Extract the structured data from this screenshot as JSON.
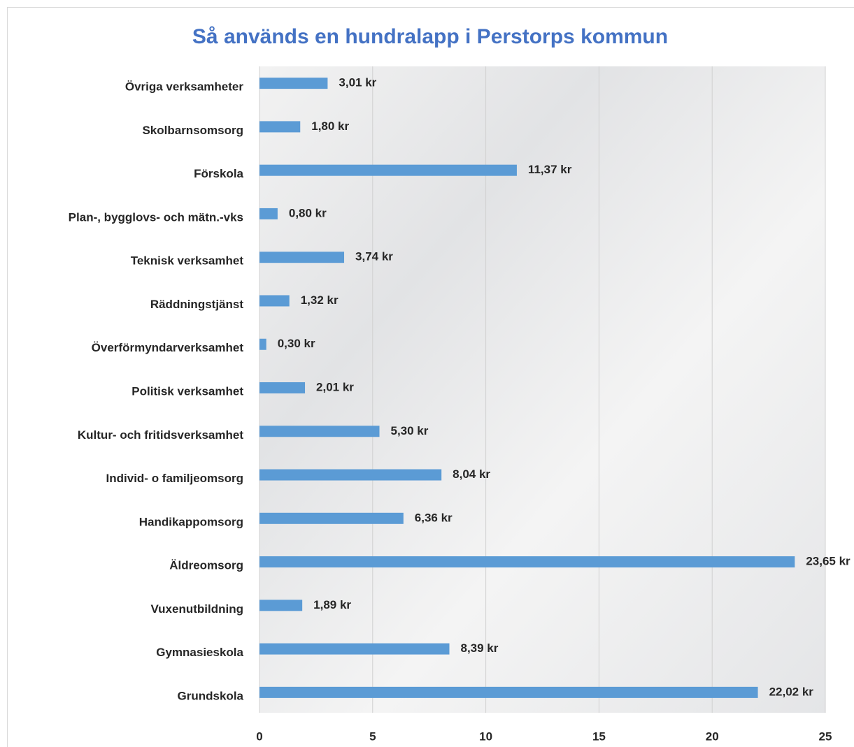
{
  "chart_data": {
    "type": "barh",
    "title": "Så används en hundralapp i Perstorps kommun",
    "categories": [
      "Övriga verksamheter",
      "Skolbarnsomsorg",
      "Förskola",
      "Plan-, bygglovs- och mätn.-vks",
      "Teknisk verksamhet",
      "Räddningstjänst",
      "Överförmyndarverksamhet",
      "Politisk verksamhet",
      "Kultur- och fritidsverksamhet",
      "Individ- o familjeomsorg",
      "Handikappomsorg",
      "Äldreomsorg",
      "Vuxenutbildning",
      "Gymnasieskola",
      "Grundskola"
    ],
    "values": [
      3.01,
      1.8,
      11.37,
      0.8,
      3.74,
      1.32,
      0.3,
      2.01,
      5.3,
      8.04,
      6.36,
      23.65,
      1.89,
      8.39,
      22.02
    ],
    "value_labels": [
      "3,01 kr",
      "1,80 kr",
      "11,37 kr",
      "0,80 kr",
      "3,74 kr",
      "1,32 kr",
      "0,30 kr",
      "2,01 kr",
      "5,30 kr",
      "8,04 kr",
      "6,36 kr",
      "23,65 kr",
      "1,89 kr",
      "8,39 kr",
      "22,02 kr"
    ],
    "color": "#5b9bd5",
    "xlim": [
      0,
      25
    ],
    "xticks": [
      0,
      5,
      10,
      15,
      20,
      25
    ],
    "grid": true
  }
}
